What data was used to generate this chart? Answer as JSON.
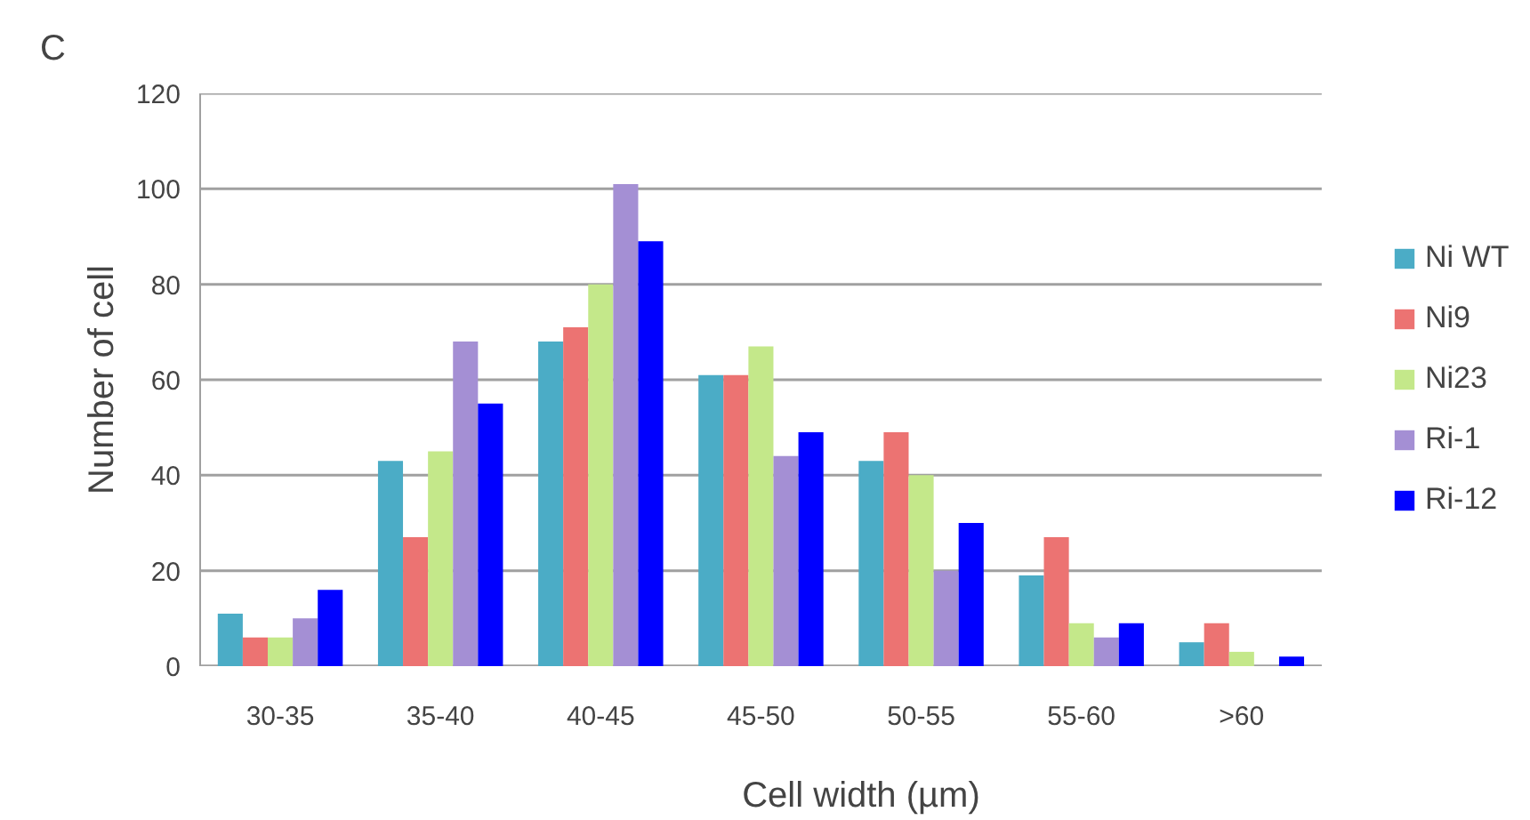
{
  "chart_data": {
    "type": "bar",
    "categories": [
      "30-35",
      "35-40",
      "40-45",
      "45-50",
      "50-55",
      "55-60",
      ">60"
    ],
    "xlabel": "Cell width (µm)",
    "ylabel": "Number of cell",
    "annotations": [
      "C"
    ],
    "series": [
      {
        "name": "Ni WT",
        "color": "#4bacc6",
        "values": [
          11,
          43,
          68,
          61,
          43,
          19,
          5
        ]
      },
      {
        "name": "Ni9",
        "color": "#ec7372",
        "values": [
          6,
          27,
          71,
          61,
          49,
          27,
          9
        ]
      },
      {
        "name": "Ni23",
        "color": "#c4e88a",
        "values": [
          6,
          45,
          80,
          67,
          40,
          9,
          3
        ]
      },
      {
        "name": "Ri-1",
        "color": "#a48fd4",
        "values": [
          10,
          68,
          101,
          44,
          20,
          6,
          0
        ]
      },
      {
        "name": "Ri-12",
        "color": "#0000ff",
        "values": [
          16,
          55,
          89,
          49,
          30,
          9,
          2
        ]
      }
    ],
    "ylim": [
      0,
      120
    ],
    "yticks": [
      0,
      20,
      40,
      60,
      80,
      100,
      120
    ],
    "grid": "y",
    "legend": "right"
  }
}
